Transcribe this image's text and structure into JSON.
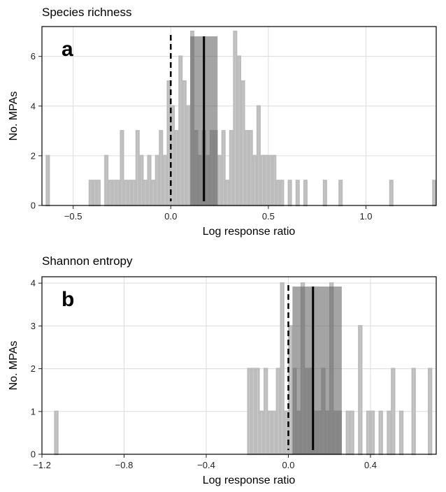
{
  "chart_data": [
    {
      "panel": "a",
      "type": "bar",
      "title": "Species richness",
      "xlabel": "Log response ratio",
      "ylabel": "No. MPAs",
      "xlim": [
        -0.66,
        1.36
      ],
      "ylim": [
        0,
        7.2
      ],
      "x_ticks": [
        -0.5,
        0.0,
        0.5,
        1.0
      ],
      "x_tick_labels": [
        "−0.5",
        "0.0",
        "0.5",
        "1.0"
      ],
      "y_ticks": [
        0,
        2,
        4,
        6
      ],
      "y_tick_labels": [
        "0",
        "2",
        "4",
        "6"
      ],
      "bin_width": 0.02,
      "bins": [
        {
          "x": -0.63,
          "count": 2
        },
        {
          "x": -0.41,
          "count": 1
        },
        {
          "x": -0.39,
          "count": 1
        },
        {
          "x": -0.37,
          "count": 1
        },
        {
          "x": -0.33,
          "count": 2
        },
        {
          "x": -0.31,
          "count": 1
        },
        {
          "x": -0.29,
          "count": 1
        },
        {
          "x": -0.27,
          "count": 1
        },
        {
          "x": -0.25,
          "count": 3
        },
        {
          "x": -0.23,
          "count": 1
        },
        {
          "x": -0.21,
          "count": 1
        },
        {
          "x": -0.19,
          "count": 1
        },
        {
          "x": -0.17,
          "count": 3
        },
        {
          "x": -0.15,
          "count": 2
        },
        {
          "x": -0.13,
          "count": 1
        },
        {
          "x": -0.11,
          "count": 2
        },
        {
          "x": -0.09,
          "count": 1
        },
        {
          "x": -0.07,
          "count": 2
        },
        {
          "x": -0.05,
          "count": 3
        },
        {
          "x": -0.03,
          "count": 2
        },
        {
          "x": -0.01,
          "count": 5
        },
        {
          "x": 0.01,
          "count": 4
        },
        {
          "x": 0.03,
          "count": 3
        },
        {
          "x": 0.05,
          "count": 6
        },
        {
          "x": 0.07,
          "count": 5
        },
        {
          "x": 0.09,
          "count": 4
        },
        {
          "x": 0.11,
          "count": 7
        },
        {
          "x": 0.13,
          "count": 3
        },
        {
          "x": 0.15,
          "count": 2
        },
        {
          "x": 0.17,
          "count": 3
        },
        {
          "x": 0.19,
          "count": 2
        },
        {
          "x": 0.21,
          "count": 3
        },
        {
          "x": 0.23,
          "count": 3
        },
        {
          "x": 0.25,
          "count": 2
        },
        {
          "x": 0.27,
          "count": 3
        },
        {
          "x": 0.29,
          "count": 1
        },
        {
          "x": 0.31,
          "count": 3
        },
        {
          "x": 0.33,
          "count": 7
        },
        {
          "x": 0.35,
          "count": 6
        },
        {
          "x": 0.37,
          "count": 5
        },
        {
          "x": 0.39,
          "count": 3
        },
        {
          "x": 0.41,
          "count": 3
        },
        {
          "x": 0.43,
          "count": 2
        },
        {
          "x": 0.45,
          "count": 4
        },
        {
          "x": 0.47,
          "count": 2
        },
        {
          "x": 0.49,
          "count": 2
        },
        {
          "x": 0.51,
          "count": 2
        },
        {
          "x": 0.53,
          "count": 2
        },
        {
          "x": 0.55,
          "count": 1
        },
        {
          "x": 0.57,
          "count": 1
        },
        {
          "x": 0.61,
          "count": 1
        },
        {
          "x": 0.65,
          "count": 1
        },
        {
          "x": 0.69,
          "count": 1
        },
        {
          "x": 0.79,
          "count": 1
        },
        {
          "x": 0.87,
          "count": 1
        },
        {
          "x": 1.13,
          "count": 1
        },
        {
          "x": 1.35,
          "count": 1
        }
      ],
      "mean": 0.17,
      "ci": [
        0.1,
        0.24
      ],
      "zero_line": 0.0
    },
    {
      "panel": "b",
      "type": "bar",
      "title": "Shannon entropy",
      "xlabel": "Log response ratio",
      "ylabel": "No. MPAs",
      "xlim": [
        -1.2,
        0.72
      ],
      "ylim": [
        0,
        4.15
      ],
      "x_ticks": [
        -1.2,
        -0.8,
        -0.4,
        0.0,
        0.4
      ],
      "x_tick_labels": [
        "−1.2",
        "−0.8",
        "−0.4",
        "0.0",
        "0.4"
      ],
      "y_ticks": [
        0,
        1,
        2,
        3,
        4
      ],
      "y_tick_labels": [
        "0",
        "1",
        "2",
        "3",
        "4"
      ],
      "bin_width": 0.02,
      "bins": [
        {
          "x": -1.13,
          "count": 1
        },
        {
          "x": -0.19,
          "count": 2
        },
        {
          "x": -0.17,
          "count": 2
        },
        {
          "x": -0.15,
          "count": 2
        },
        {
          "x": -0.13,
          "count": 1
        },
        {
          "x": -0.11,
          "count": 2
        },
        {
          "x": -0.09,
          "count": 1
        },
        {
          "x": -0.07,
          "count": 1
        },
        {
          "x": -0.05,
          "count": 2
        },
        {
          "x": -0.03,
          "count": 4
        },
        {
          "x": -0.01,
          "count": 1
        },
        {
          "x": 0.01,
          "count": 3
        },
        {
          "x": 0.03,
          "count": 2
        },
        {
          "x": 0.05,
          "count": 1
        },
        {
          "x": 0.07,
          "count": 4
        },
        {
          "x": 0.09,
          "count": 2
        },
        {
          "x": 0.11,
          "count": 2
        },
        {
          "x": 0.13,
          "count": 1
        },
        {
          "x": 0.15,
          "count": 1
        },
        {
          "x": 0.17,
          "count": 2
        },
        {
          "x": 0.19,
          "count": 1
        },
        {
          "x": 0.21,
          "count": 4
        },
        {
          "x": 0.23,
          "count": 1
        },
        {
          "x": 0.25,
          "count": 1
        },
        {
          "x": 0.29,
          "count": 1
        },
        {
          "x": 0.31,
          "count": 1
        },
        {
          "x": 0.35,
          "count": 3
        },
        {
          "x": 0.39,
          "count": 1
        },
        {
          "x": 0.41,
          "count": 1
        },
        {
          "x": 0.45,
          "count": 1
        },
        {
          "x": 0.49,
          "count": 1
        },
        {
          "x": 0.51,
          "count": 2
        },
        {
          "x": 0.55,
          "count": 1
        },
        {
          "x": 0.61,
          "count": 2
        },
        {
          "x": 0.69,
          "count": 2
        }
      ],
      "mean": 0.12,
      "ci": [
        0.02,
        0.26
      ],
      "zero_line": 0.0
    }
  ],
  "colors": {
    "bar_fill": "#c8c8c8",
    "bar_stroke": "#bcbcbc",
    "ci_fill": "#5a5a5a",
    "mean_line": "#000000",
    "zero_line": "#000000",
    "grid": "#dcdcdc"
  },
  "panels": [
    {
      "letter": "a",
      "title": "Species richness"
    },
    {
      "letter": "b",
      "title": "Shannon entropy"
    }
  ]
}
